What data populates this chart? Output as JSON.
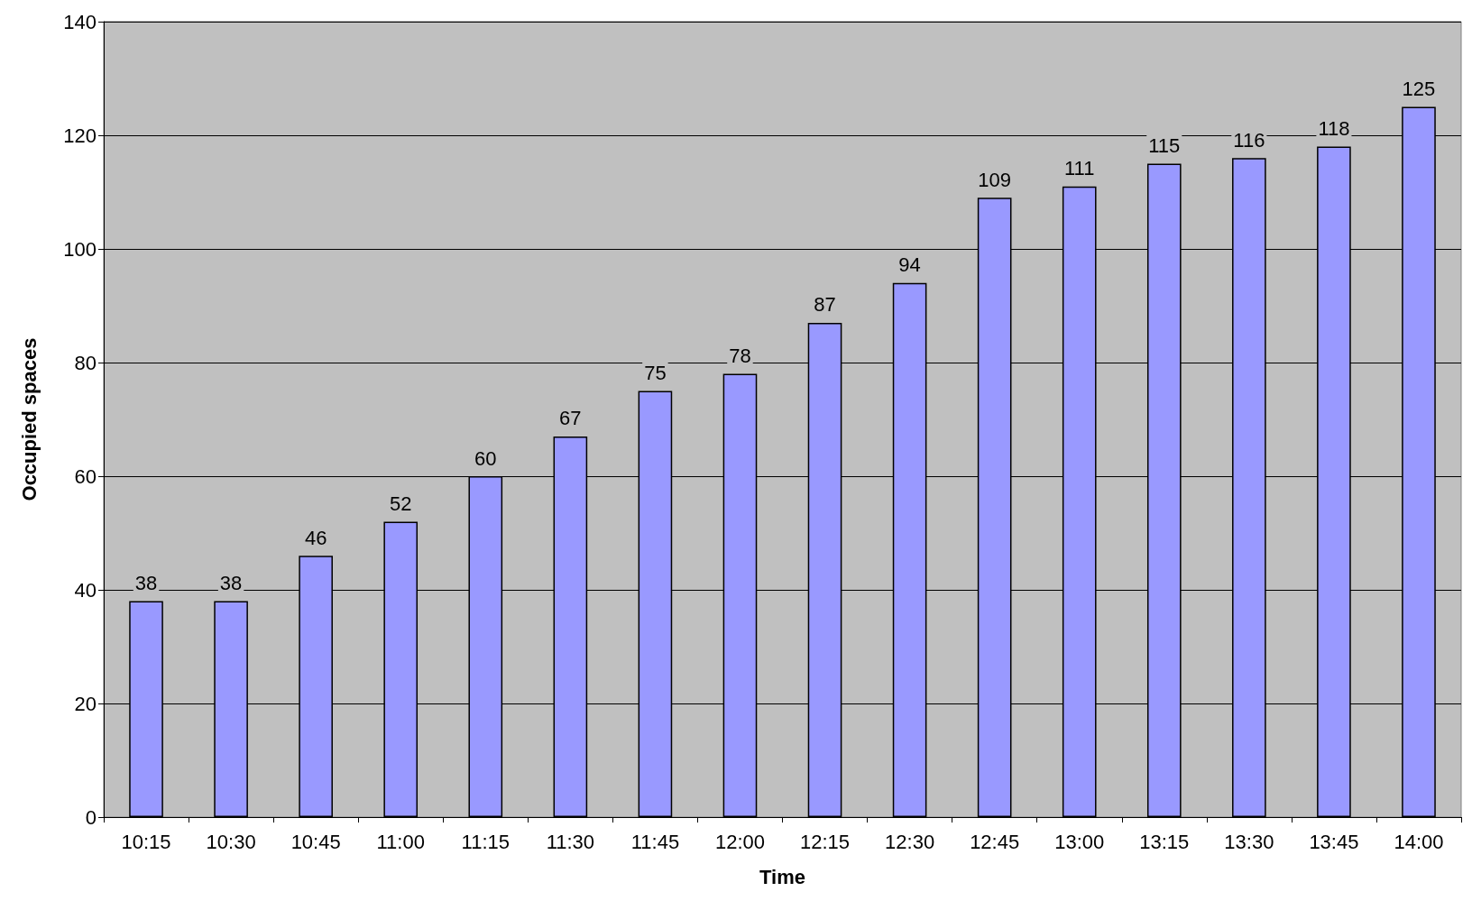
{
  "chart_data": {
    "type": "bar",
    "xlabel": "Time",
    "ylabel": "Occupied spaces",
    "categories": [
      "10:15",
      "10:30",
      "10:45",
      "11:00",
      "11:15",
      "11:30",
      "11:45",
      "12:00",
      "12:15",
      "12:30",
      "12:45",
      "13:00",
      "13:15",
      "13:30",
      "13:45",
      "14:00"
    ],
    "values": [
      38,
      38,
      46,
      52,
      60,
      67,
      75,
      78,
      87,
      94,
      109,
      111,
      115,
      116,
      118,
      125
    ],
    "color": "#9999ff",
    "ylim": [
      0,
      140
    ],
    "yticks": [
      0,
      20,
      40,
      60,
      80,
      100,
      120,
      140
    ],
    "grid": "y",
    "data_labels": true
  }
}
